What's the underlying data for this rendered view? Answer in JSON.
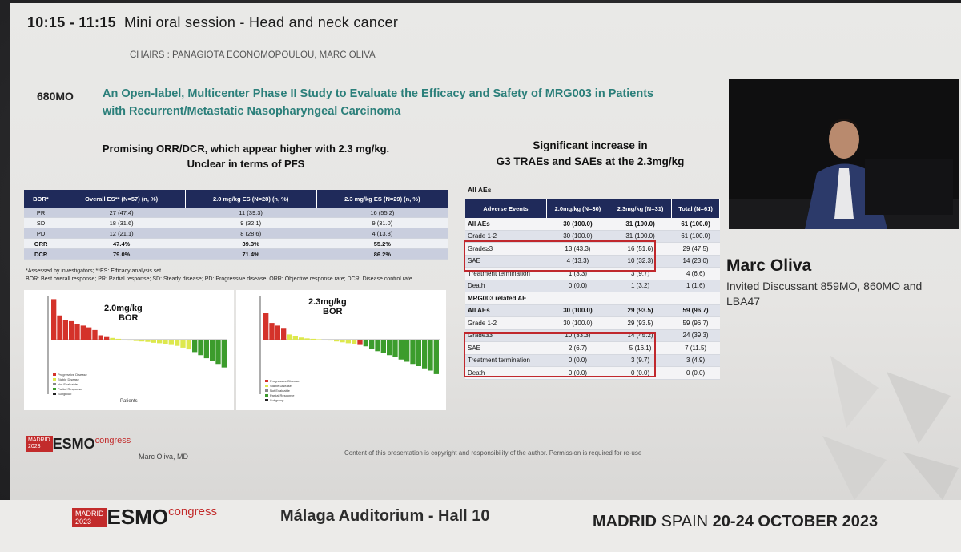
{
  "session": {
    "time": "10:15 - 11:15",
    "title": "Mini oral session - Head and neck cancer",
    "chairs": "CHAIRS : PANAGIOTA ECONOMOPOULOU, MARC OLIVA"
  },
  "study": {
    "code": "680MO",
    "title": "An Open-label, Multicenter Phase II Study to Evaluate the Efficacy and Safety of MRG003 in Patients with Recurrent/Metastatic Nasopharyngeal Carcinoma"
  },
  "left_panel": {
    "heading_line1": "Promising ORR/DCR, which appear higher with 2.3 mg/kg.",
    "heading_line2": "Unclear in terms of PFS",
    "table": {
      "headers": [
        "BOR*",
        "Overall ES** (N=57) (n, %)",
        "2.0 mg/kg ES (N=28) (n, %)",
        "2.3 mg/kg ES (N=29) (n, %)"
      ],
      "rows": [
        [
          "PR",
          "27 (47.4)",
          "11 (39.3)",
          "16 (55.2)"
        ],
        [
          "SD",
          "18 (31.6)",
          "9 (32.1)",
          "9 (31.0)"
        ],
        [
          "PD",
          "12 (21.1)",
          "8 (28.6)",
          "4 (13.8)"
        ],
        [
          "ORR",
          "47.4%",
          "39.3%",
          "55.2%"
        ],
        [
          "DCR",
          "79.0%",
          "71.4%",
          "86.2%"
        ]
      ]
    },
    "footnote1": "*Assessed by investigators; **ES: Efficacy analysis set",
    "footnote2": "BOR: Best overall response; PR: Partial response; SD: Steady disease; PD: Progressive disease; ORR: Objective response rate; DCR: Disease control rate.",
    "chart1_label": "2.0mg/kg BOR",
    "chart2_label": "2.3mg/kg BOR",
    "x_label": "Patients",
    "legend": [
      "Progressive Disease",
      "Stable Disease",
      "Not Evaluable",
      "Partial Response",
      "Subgroup"
    ]
  },
  "right_panel": {
    "heading_line1": "Significant increase in",
    "heading_line2": "G3 TRAEs and SAEs at the 2.3mg/kg",
    "all_aes_label": "All AEs",
    "table": {
      "headers": [
        "Adverse Events",
        "2.0mg/kg (N=30)",
        "2.3mg/kg (N=31)",
        "Total (N=61)"
      ],
      "rows": [
        [
          "All AEs",
          "30 (100.0)",
          "31 (100.0)",
          "61 (100.0)"
        ],
        [
          "Grade 1-2",
          "30 (100.0)",
          "31 (100.0)",
          "61 (100.0)"
        ],
        [
          "Grade≥3",
          "13 (43.3)",
          "16 (51.6)",
          "29 (47.5)"
        ],
        [
          "SAE",
          "4 (13.3)",
          "10 (32.3)",
          "14 (23.0)"
        ],
        [
          "Treatment termination",
          "1 (3.3)",
          "3 (9.7)",
          "4 (6.6)"
        ],
        [
          "Death",
          "0 (0.0)",
          "1 (3.2)",
          "1 (1.6)"
        ],
        [
          "MRG003 related AE",
          "",
          "",
          ""
        ],
        [
          "All AEs",
          "30 (100.0)",
          "29 (93.5)",
          "59 (96.7)"
        ],
        [
          "Grade 1-2",
          "30 (100.0)",
          "29 (93.5)",
          "59 (96.7)"
        ],
        [
          "Grade≥3",
          "10 (33.3)",
          "14 (45.2)",
          "24 (39.3)"
        ],
        [
          "SAE",
          "2 (6.7)",
          "5 (16.1)",
          "7 (11.5)"
        ],
        [
          "Treatment termination",
          "0 (0.0)",
          "3 (9.7)",
          "3 (4.9)"
        ],
        [
          "Death",
          "0 (0.0)",
          "0 (0.0)",
          "0 (0.0)"
        ]
      ]
    }
  },
  "speaker": {
    "name": "Marc Oliva",
    "role": "Invited Discussant 859MO, 860MO and LBA47"
  },
  "footer": {
    "esmo_city": "MADRID",
    "esmo_year": "2023",
    "esmo_brand": "ESMO",
    "esmo_congress": "congress",
    "presenter": "Marc Oliva, MD",
    "copyright": "Content of this presentation is copyright and responsibility of the author. Permission is required for re-use",
    "venue": "Málaga Auditorium - Hall 10",
    "madrid": "MADRID",
    "spain": "SPAIN",
    "dates": "20-24 OCTOBER 2023"
  },
  "colors": {
    "teal": "#2b7f7a",
    "navy": "#1f2a5a",
    "red": "#c0282d",
    "green": "#2f9a2f",
    "yellow": "#d8e84a"
  },
  "waterfall1": [
    92,
    55,
    45,
    42,
    35,
    32,
    28,
    22,
    10,
    6,
    4,
    2,
    -1,
    -2,
    -3,
    -4,
    -5,
    -7,
    -8,
    -10,
    -12,
    -14,
    -18,
    -22,
    -28,
    -35,
    -42,
    -48,
    -55,
    -63
  ],
  "waterfall1_colors": [
    "r",
    "r",
    "r",
    "r",
    "r",
    "r",
    "r",
    "r",
    "r",
    "r",
    "y",
    "y",
    "y",
    "y",
    "y",
    "y",
    "y",
    "y",
    "y",
    "y",
    "y",
    "y",
    "y",
    "y",
    "g",
    "g",
    "g",
    "g",
    "g",
    "g"
  ],
  "waterfall2": [
    60,
    38,
    32,
    25,
    12,
    8,
    5,
    3,
    2,
    1,
    -1,
    -2,
    -4,
    -6,
    -8,
    -10,
    -12,
    -15,
    -20,
    -26,
    -30,
    -35,
    -40,
    -45,
    -50,
    -55,
    -60,
    -65,
    -70,
    -78
  ],
  "waterfall2_colors": [
    "r",
    "r",
    "r",
    "r",
    "y",
    "y",
    "y",
    "y",
    "y",
    "y",
    "y",
    "y",
    "y",
    "y",
    "y",
    "y",
    "r",
    "g",
    "g",
    "g",
    "g",
    "g",
    "g",
    "g",
    "g",
    "g",
    "g",
    "g",
    "g",
    "g"
  ]
}
